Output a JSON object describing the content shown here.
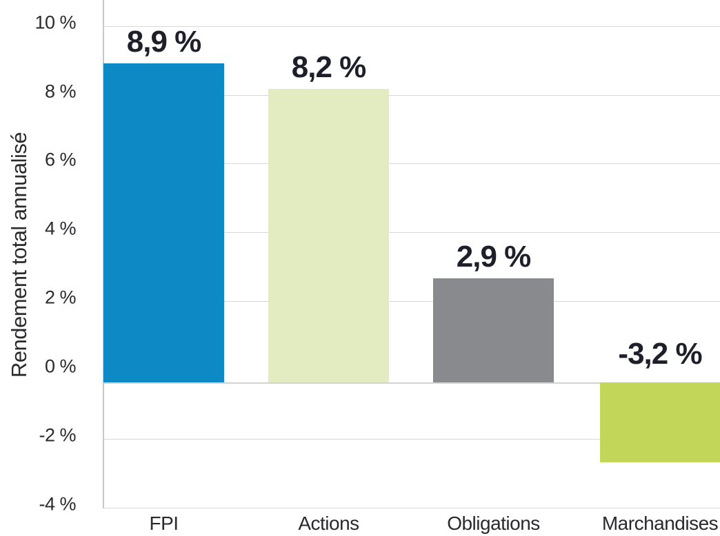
{
  "chart_data": {
    "type": "bar",
    "title": "",
    "xlabel": "",
    "ylabel": "Rendement total annualisé",
    "categories": [
      "FPI",
      "Actions",
      "Obligations",
      "Marchandises"
    ],
    "values": [
      8.9,
      8.2,
      2.9,
      -3.2
    ],
    "value_labels": [
      "8,9 %",
      "8,2 %",
      "2,9 %",
      "-3,2 %"
    ],
    "bar_colors": [
      "#0d8ac5",
      "#e3ebc0",
      "#898a8e",
      "#c2d65a"
    ],
    "y_ticks": [
      {
        "value": 10,
        "label": "10 %"
      },
      {
        "value": 8,
        "label": "8 %"
      },
      {
        "value": 6,
        "label": "6 %"
      },
      {
        "value": 4,
        "label": "4 %"
      },
      {
        "value": 2,
        "label": "2 %"
      },
      {
        "value": 0,
        "label": "0 %"
      },
      {
        "value": -2,
        "label": "-2 %"
      },
      {
        "value": -4,
        "label": "-4 %"
      }
    ],
    "ylim": [
      -4,
      10.6
    ],
    "grid": "horizontal gridlines at each labeled tick except 0 %",
    "legend": "none",
    "number_format": "French comma decimal with space before %"
  },
  "colors": {
    "background": "#ffffff",
    "gridline": "#d9d9d9",
    "y_axis_line": "#c7c7c9",
    "x_baseline": "#d2d2d2",
    "tick_text": "#2a2a2e",
    "category_text": "#2a2a2e",
    "value_label_text": "#1d1f2a"
  }
}
